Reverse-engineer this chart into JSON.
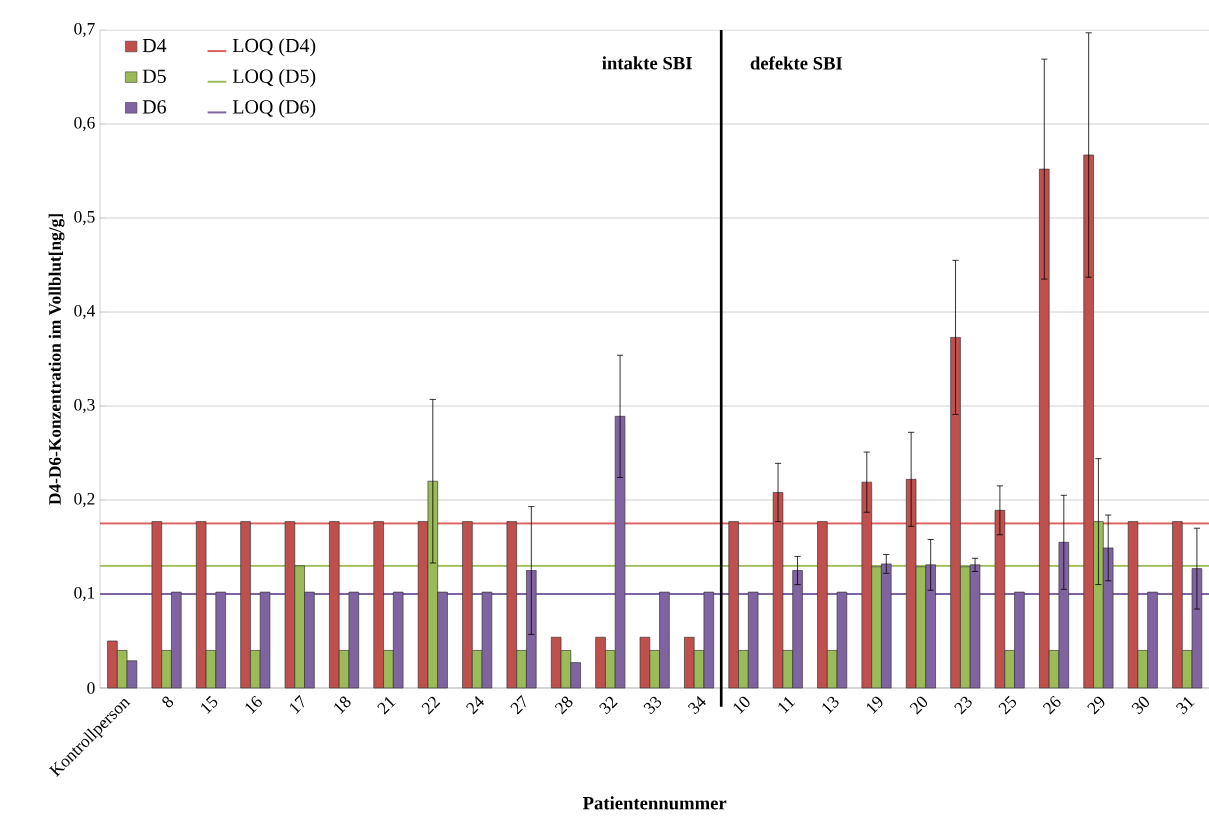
{
  "chart_data": {
    "type": "bar",
    "xlabel": "Patientennummer",
    "ylabel": "D4-D6-Konzentration  im Vollblut[ng/g]",
    "categories": [
      "Kontrollperson",
      "8",
      "15",
      "16",
      "17",
      "18",
      "21",
      "22",
      "24",
      "27",
      "28",
      "32",
      "33",
      "34",
      "10",
      "11",
      "13",
      "19",
      "20",
      "23",
      "25",
      "26",
      "29",
      "30",
      "31"
    ],
    "series": [
      {
        "name": "D4",
        "color": "#c0504d",
        "values": [
          0.05,
          0.177,
          0.177,
          0.177,
          0.177,
          0.177,
          0.177,
          0.177,
          0.177,
          0.177,
          0.054,
          0.054,
          0.054,
          0.054,
          0.177,
          0.208,
          0.177,
          0.219,
          0.222,
          0.373,
          0.189,
          0.552,
          0.567,
          0.177,
          0.177
        ],
        "errors": [
          null,
          null,
          null,
          null,
          null,
          null,
          null,
          null,
          null,
          null,
          null,
          null,
          null,
          null,
          null,
          0.031,
          null,
          0.032,
          0.05,
          0.082,
          0.026,
          0.117,
          0.13,
          null,
          null
        ]
      },
      {
        "name": "D5",
        "color": "#9bbb59",
        "values": [
          0.04,
          0.04,
          0.04,
          0.04,
          0.13,
          0.04,
          0.04,
          0.22,
          0.04,
          0.04,
          0.04,
          0.04,
          0.04,
          0.04,
          0.04,
          0.04,
          0.04,
          0.129,
          0.129,
          0.129,
          0.04,
          0.04,
          0.177,
          0.04,
          0.04
        ],
        "errors": [
          null,
          null,
          null,
          null,
          null,
          null,
          null,
          0.087,
          null,
          null,
          null,
          null,
          null,
          null,
          null,
          null,
          null,
          null,
          null,
          null,
          null,
          null,
          0.067,
          null,
          null
        ]
      },
      {
        "name": "D6",
        "color": "#8064a2",
        "values": [
          0.029,
          0.102,
          0.102,
          0.102,
          0.102,
          0.102,
          0.102,
          0.102,
          0.102,
          0.125,
          0.027,
          0.289,
          0.102,
          0.102,
          0.102,
          0.125,
          0.102,
          0.132,
          0.131,
          0.131,
          0.102,
          0.155,
          0.149,
          0.102,
          0.127
        ],
        "errors": [
          null,
          null,
          null,
          null,
          null,
          null,
          null,
          null,
          null,
          0.068,
          null,
          0.065,
          null,
          null,
          null,
          0.015,
          null,
          0.01,
          0.027,
          0.007,
          null,
          0.05,
          0.035,
          null,
          0.043
        ]
      }
    ],
    "ylim": [
      0,
      0.7
    ],
    "yticks": [
      0,
      {
        "value": 0.1,
        "label": "0,1"
      },
      {
        "value": 0.2,
        "label": "0,2"
      },
      {
        "value": 0.3,
        "label": "0,3"
      },
      {
        "value": 0.4,
        "label": "0,4"
      },
      {
        "value": 0.5,
        "label": "0,5"
      },
      {
        "value": 0.6,
        "label": "0,6"
      },
      {
        "value": 0.7,
        "label": "0,7"
      }
    ],
    "ref_lines": [
      {
        "axis": "y",
        "value": 0.175,
        "label": "LOQ (D4)",
        "color": "#d9605c"
      },
      {
        "axis": "y",
        "value": 0.13,
        "label": "LOQ (D5)",
        "color": "#9bbb59"
      },
      {
        "axis": "y",
        "value": 0.1,
        "label": "LOQ (D6)",
        "color": "#8064a2"
      },
      {
        "axis": "x",
        "value": "34",
        "color": "#000000"
      }
    ],
    "annotations": [
      "intakte SBI",
      "defekte SBI"
    ],
    "grid": "y",
    "legend": "top left"
  }
}
